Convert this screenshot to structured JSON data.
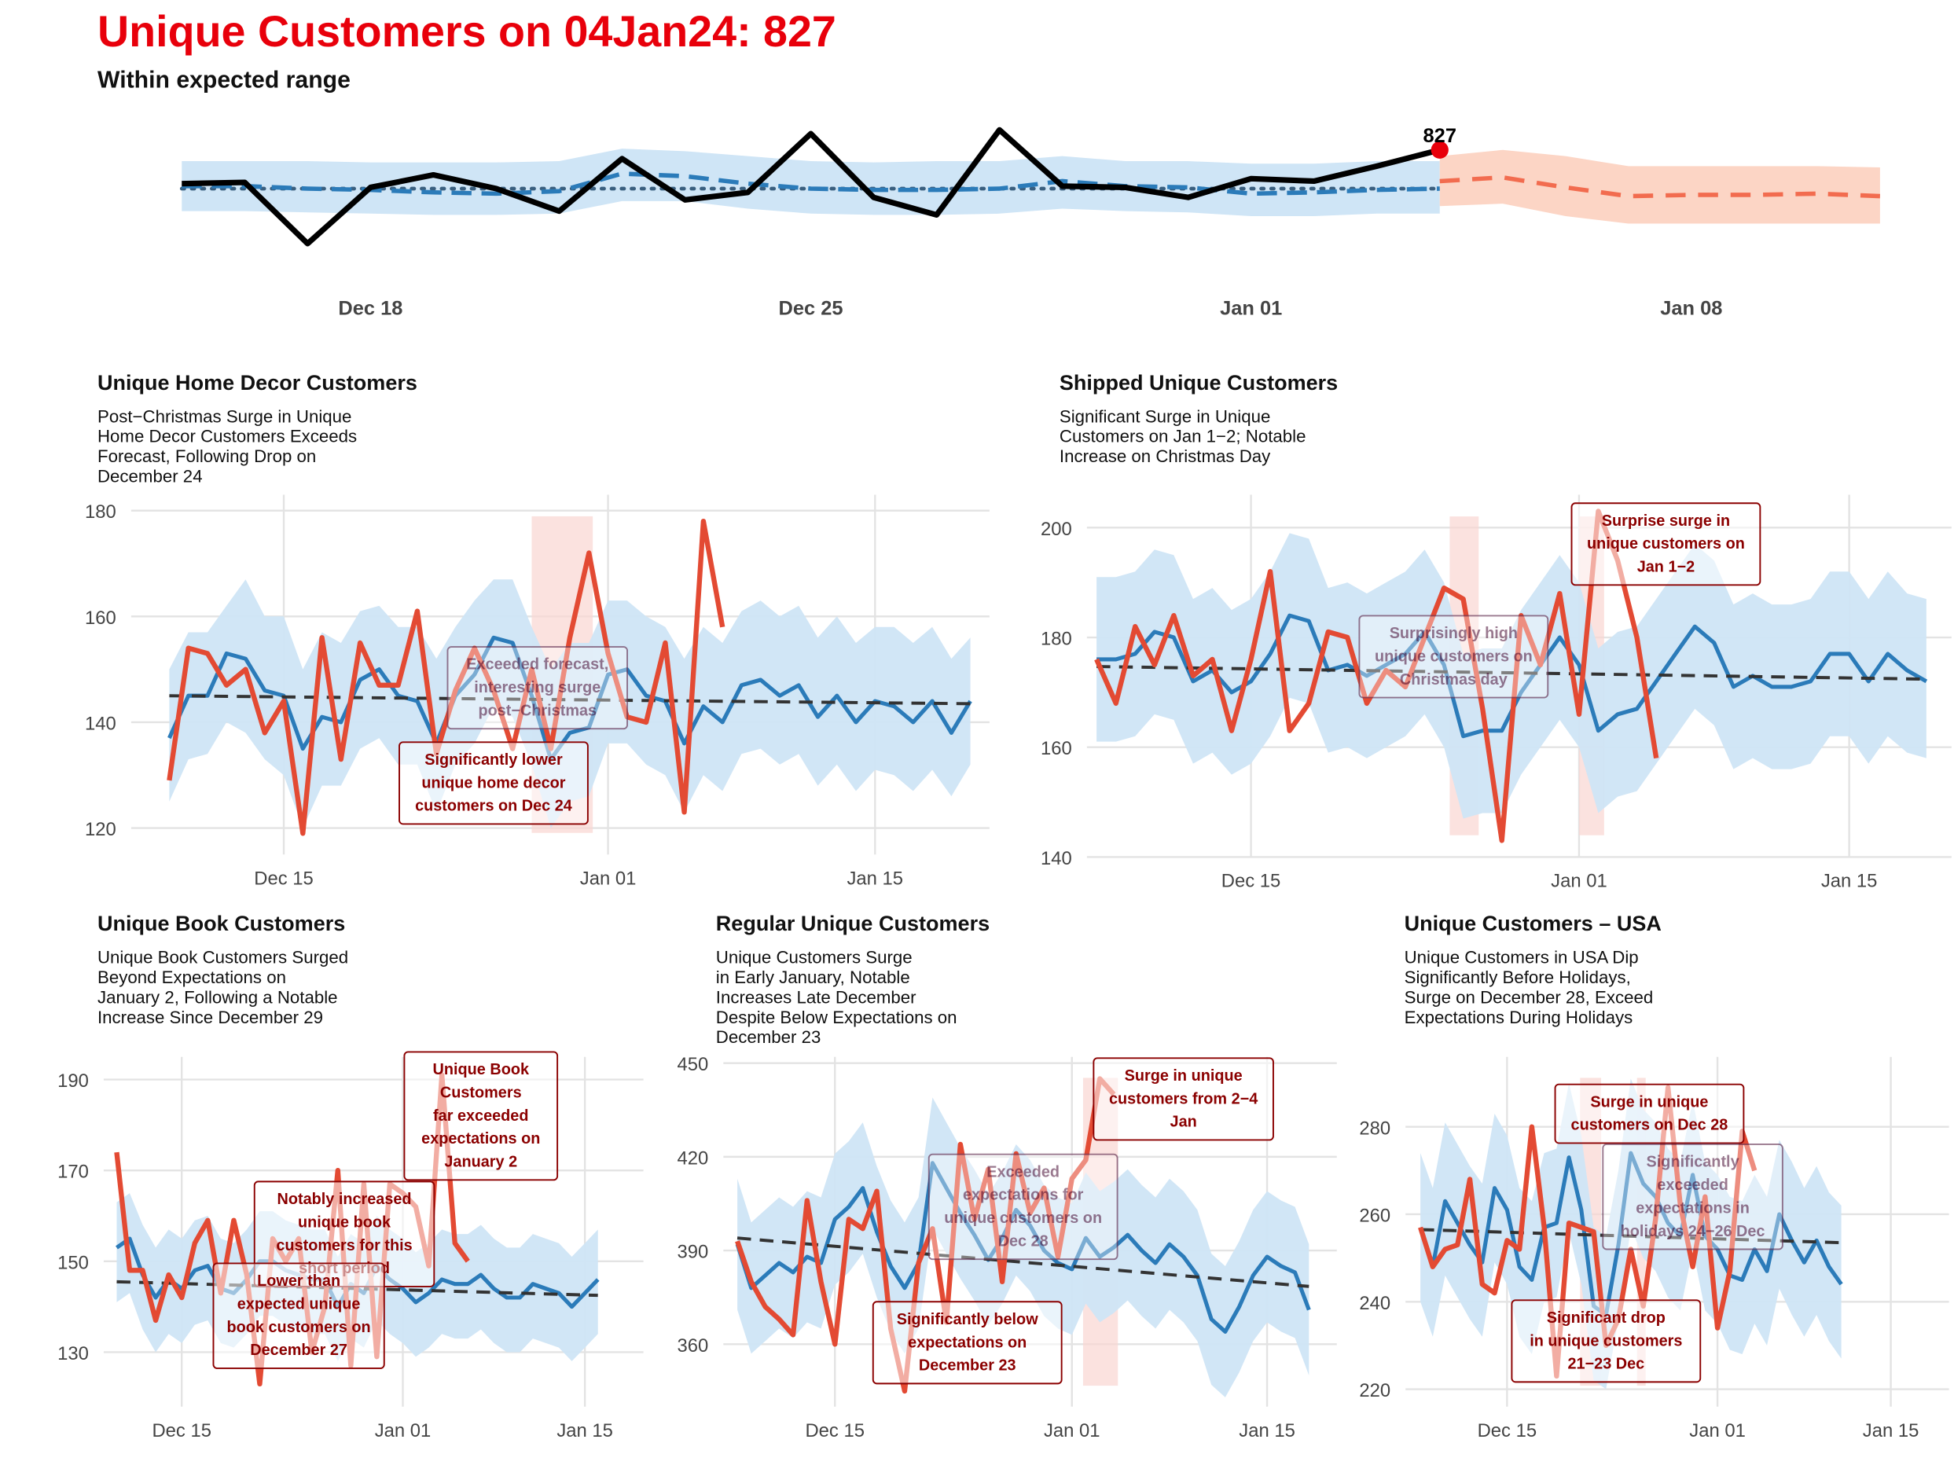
{
  "header": {
    "title": "Unique Customers on 04Jan24: 827",
    "subtitle": "Within expected range"
  },
  "colors": {
    "actual_top": "#000000",
    "actual": "#e34a33",
    "expected": "#2b7bb9",
    "band": "#cfe5f6",
    "forecast": "#f26c4f",
    "forecast_band": "#fcd5c5",
    "trend": "#333333",
    "highlight": "#e8000b",
    "annotation": "#8b0000"
  },
  "chart_data": [
    {
      "id": "overview",
      "type": "line",
      "title": "Unique Customers on 04Jan24: 827",
      "subtitle": "Within expected range",
      "x_ticks": [
        {
          "x": 3,
          "label": "Dec 18"
        },
        {
          "x": 10,
          "label": "Dec 25"
        },
        {
          "x": 17,
          "label": "Jan 01"
        },
        {
          "x": 24,
          "label": "Jan 08"
        }
      ],
      "xlim": [
        -1.5,
        27.5
      ],
      "ylim": [
        715,
        860
      ],
      "actual": [
        800,
        801,
        752,
        797,
        807,
        796,
        778,
        820,
        787,
        793,
        840,
        789,
        775,
        843,
        798,
        797,
        789,
        804,
        802,
        814,
        827
      ],
      "expected": [
        798,
        798,
        796,
        795,
        793,
        792,
        794,
        808,
        806,
        800,
        796,
        795,
        795,
        796,
        802,
        798,
        797,
        792,
        793,
        795,
        796
      ],
      "trend": [
        796,
        796,
        796,
        796,
        796,
        796,
        796,
        796,
        796,
        796,
        796,
        796,
        796,
        796,
        796,
        796,
        796,
        796,
        796,
        796,
        796
      ],
      "band_upper": [
        818,
        818,
        818,
        817,
        817,
        817,
        818,
        828,
        826,
        822,
        818,
        817,
        818,
        818,
        822,
        818,
        818,
        816,
        816,
        818,
        818
      ],
      "band_lower": [
        778,
        778,
        777,
        776,
        775,
        775,
        776,
        786,
        786,
        780,
        776,
        775,
        775,
        776,
        780,
        778,
        777,
        774,
        774,
        776,
        776
      ],
      "forecast_x": [
        20,
        21,
        22,
        23,
        24,
        25,
        26,
        27
      ],
      "forecast": [
        802,
        805,
        797,
        790,
        791,
        791,
        792,
        790
      ],
      "forecast_upper": [
        822,
        827,
        822,
        814,
        814,
        814,
        814,
        813
      ],
      "forecast_lower": [
        782,
        784,
        774,
        768,
        768,
        768,
        768,
        768
      ],
      "last_point": {
        "x": 20,
        "y": 827,
        "label": "827"
      }
    },
    {
      "id": "home-decor",
      "type": "line",
      "title": "Unique Home Decor Customers",
      "subtitle": "Post−Christmas Surge in Unique\nHome Decor Customers Exceeds\nForecast, Following Drop on\nDecember 24",
      "x_ticks": [
        {
          "x": 6,
          "label": "Dec 15"
        },
        {
          "x": 23,
          "label": "Jan 01"
        },
        {
          "x": 37,
          "label": "Jan 15"
        }
      ],
      "y_ticks": [
        120,
        140,
        160,
        180
      ],
      "xlim": [
        -2,
        43
      ],
      "ylim": [
        115,
        183
      ],
      "actual": [
        129,
        154,
        153,
        147,
        150,
        138,
        144,
        119,
        156,
        133,
        155,
        147,
        147,
        161,
        134,
        146,
        154,
        146,
        135,
        150,
        135,
        156,
        172,
        153,
        141,
        140,
        155,
        123,
        178,
        158
      ],
      "expected": [
        137,
        145,
        145,
        153,
        152,
        146,
        145,
        135,
        141,
        140,
        148,
        150,
        145,
        144,
        136,
        145,
        149,
        156,
        155,
        145,
        133,
        138,
        139,
        149,
        150,
        145,
        144,
        136,
        143,
        140,
        147,
        148,
        145,
        147,
        141,
        145,
        140,
        144,
        143,
        140,
        144,
        138,
        144
      ],
      "band_upper": [
        150,
        157,
        157,
        162,
        167,
        160,
        160,
        150,
        157,
        155,
        161,
        162,
        158,
        158,
        152,
        158,
        163,
        167,
        167,
        158,
        150,
        155,
        155,
        163,
        163,
        160,
        158,
        152,
        158,
        155,
        161,
        163,
        160,
        162,
        156,
        160,
        155,
        158,
        158,
        155,
        158,
        152,
        156
      ],
      "band_lower": [
        125,
        133,
        134,
        140,
        138,
        133,
        130,
        120,
        128,
        128,
        135,
        137,
        132,
        132,
        123,
        132,
        136,
        143,
        141,
        132,
        120,
        125,
        126,
        136,
        136,
        132,
        130,
        123,
        130,
        127,
        134,
        135,
        132,
        134,
        128,
        132,
        127,
        131,
        130,
        127,
        131,
        126,
        132
      ],
      "trend": [
        145,
        143.5
      ],
      "shade": {
        "x0": 19,
        "x1": 22.2
      },
      "annotations": [
        {
          "text": "Exceeded forecast,\ninteresting surge\npost−Christmas",
          "x": 19.3,
          "y": 146.5,
          "style": "faded"
        },
        {
          "text": "Significantly lower\nunique home decor\ncustomers on Dec 24",
          "x": 17,
          "y": 128.5,
          "style": "solid"
        }
      ]
    },
    {
      "id": "shipped",
      "type": "line",
      "title": "Shipped Unique Customers",
      "subtitle": "Significant Surge in Unique\nCustomers on Jan 1−2; Notable\nIncrease on Christmas Day",
      "x_ticks": [
        {
          "x": 8,
          "label": "Dec 15"
        },
        {
          "x": 25,
          "label": "Jan 01"
        },
        {
          "x": 39,
          "label": "Jan 15"
        }
      ],
      "y_ticks": [
        140,
        160,
        180,
        200
      ],
      "xlim": [
        -0.5,
        44.3
      ],
      "ylim": [
        140,
        206
      ],
      "actual": [
        176,
        168,
        182,
        175,
        184,
        173,
        176,
        163,
        176,
        192,
        163,
        168,
        181,
        180,
        168,
        174,
        171,
        180,
        189,
        187,
        167,
        143,
        184,
        175,
        188,
        166,
        203,
        194,
        180,
        158
      ],
      "expected": [
        176,
        176,
        177,
        181,
        180,
        172,
        174,
        170,
        172,
        177,
        184,
        183,
        174,
        175,
        173,
        175,
        177,
        181,
        175,
        162,
        163,
        163,
        170,
        175,
        180,
        175,
        163,
        166,
        167,
        172,
        177,
        182,
        179,
        171,
        173,
        171,
        171,
        172,
        177,
        177,
        172,
        177,
        174,
        172
      ],
      "band_upper": [
        191,
        191,
        192,
        196,
        195,
        187,
        189,
        185,
        187,
        192,
        199,
        198,
        189,
        190,
        188,
        190,
        192,
        196,
        190,
        177,
        178,
        178,
        185,
        190,
        195,
        190,
        178,
        181,
        182,
        187,
        192,
        197,
        194,
        186,
        188,
        186,
        186,
        187,
        192,
        192,
        187,
        192,
        188,
        187
      ],
      "band_lower": [
        161,
        161,
        162,
        166,
        165,
        157,
        159,
        155,
        157,
        162,
        169,
        168,
        159,
        160,
        158,
        160,
        162,
        166,
        160,
        147,
        148,
        148,
        155,
        160,
        165,
        160,
        148,
        151,
        152,
        157,
        162,
        167,
        164,
        156,
        158,
        156,
        156,
        157,
        162,
        162,
        157,
        162,
        159,
        158
      ],
      "trend": [
        174.7,
        172.4
      ],
      "shades": [
        {
          "x0": 18.3,
          "x1": 19.8
        },
        {
          "x0": 25,
          "x1": 26.3
        }
      ],
      "annotations": [
        {
          "text": "Surprisingly high\nunique customers on\nChristmas day",
          "x": 18.5,
          "y": 176.5,
          "style": "faded"
        },
        {
          "text": "Surprise surge in\nunique customers on\nJan 1−2",
          "x": 29.5,
          "y": 197,
          "style": "solid"
        }
      ]
    },
    {
      "id": "book",
      "type": "line",
      "title": "Unique Book Customers",
      "subtitle": "Unique Book Customers Surged\nBeyond Expectations on\nJanuary 2, Following a Notable\nIncrease Since December 29",
      "x_ticks": [
        {
          "x": 5,
          "label": "Dec 15"
        },
        {
          "x": 22,
          "label": "Jan 01"
        },
        {
          "x": 36,
          "label": "Jan 15"
        }
      ],
      "y_ticks": [
        130,
        150,
        170,
        190
      ],
      "xlim": [
        -1,
        40.5
      ],
      "ylim": [
        118,
        195
      ],
      "actual": [
        174,
        148,
        148,
        137,
        147,
        142,
        154,
        159,
        143,
        159,
        147,
        123,
        155,
        150,
        155,
        130,
        140,
        170,
        127,
        167,
        129,
        167,
        165,
        162,
        149,
        191,
        154,
        150
      ],
      "expected": [
        153,
        155,
        147,
        142,
        146,
        144,
        148,
        149,
        144,
        143,
        146,
        150,
        150,
        148,
        147,
        146,
        146,
        140,
        145,
        143,
        149,
        146,
        144,
        141,
        143,
        146,
        145,
        145,
        147,
        144,
        142,
        142,
        145,
        144,
        143,
        140,
        143,
        146
      ],
      "band_upper": [
        163,
        165,
        158,
        153,
        157,
        155,
        159,
        160,
        155,
        154,
        157,
        161,
        161,
        159,
        158,
        157,
        157,
        151,
        156,
        154,
        160,
        157,
        155,
        152,
        154,
        157,
        156,
        156,
        158,
        155,
        153,
        153,
        156,
        155,
        154,
        151,
        154,
        157
      ],
      "band_lower": [
        141,
        143,
        135,
        130,
        134,
        132,
        136,
        137,
        132,
        131,
        134,
        138,
        138,
        136,
        135,
        134,
        134,
        128,
        133,
        131,
        137,
        134,
        132,
        129,
        131,
        134,
        133,
        133,
        135,
        132,
        130,
        130,
        133,
        132,
        131,
        128,
        131,
        134
      ],
      "trend": [
        145.5,
        142.5
      ],
      "annotations": [
        {
          "text": "Unique Book\nCustomers\nfar exceeded\nexpectations on\nJanuary 2",
          "x": 28,
          "y": 182,
          "style": "solid",
          "clip": true
        },
        {
          "text": "Notably increased\nunique book\ncustomers for this\nshort period",
          "x": 17.5,
          "y": 156,
          "style": "solid"
        },
        {
          "text": "Lower than\nexpected unique\nbook customers on\nDecember 27",
          "x": 14,
          "y": 138,
          "style": "solid"
        }
      ]
    },
    {
      "id": "regular",
      "type": "line",
      "title": "Regular Unique Customers",
      "subtitle": "Unique Customers Surge\nin Early January, Notable\nIncreases Late December\nDespite Below Expectations on\nDecember 23",
      "x_ticks": [
        {
          "x": 7,
          "label": "Dec 15"
        },
        {
          "x": 24,
          "label": "Jan 01"
        },
        {
          "x": 38,
          "label": "Jan 15"
        }
      ],
      "y_ticks": [
        360,
        390,
        420,
        450
      ],
      "xlim": [
        -1,
        43
      ],
      "ylim": [
        340,
        452
      ],
      "actual": [
        393,
        380,
        372,
        368,
        363,
        406,
        380,
        360,
        400,
        397,
        409,
        365,
        345,
        386,
        397,
        367,
        424,
        400,
        416,
        380,
        421,
        402,
        410,
        388,
        413,
        419,
        445,
        440
      ],
      "expected": [
        392,
        378,
        382,
        386,
        383,
        388,
        386,
        400,
        404,
        410,
        396,
        385,
        378,
        386,
        418,
        410,
        402,
        395,
        387,
        394,
        403,
        398,
        390,
        386,
        384,
        394,
        388,
        391,
        395,
        390,
        386,
        392,
        388,
        382,
        368,
        364,
        372,
        382,
        388,
        385,
        383,
        371
      ],
      "band_upper": [
        413,
        399,
        403,
        407,
        404,
        409,
        407,
        421,
        425,
        431,
        417,
        406,
        399,
        407,
        439,
        431,
        423,
        416,
        408,
        415,
        424,
        419,
        411,
        407,
        405,
        415,
        409,
        412,
        416,
        411,
        407,
        413,
        409,
        403,
        389,
        385,
        393,
        403,
        409,
        406,
        404,
        392
      ],
      "band_lower": [
        371,
        357,
        361,
        365,
        362,
        367,
        365,
        379,
        383,
        389,
        375,
        364,
        357,
        365,
        397,
        389,
        381,
        374,
        366,
        373,
        382,
        377,
        369,
        365,
        363,
        373,
        367,
        370,
        374,
        369,
        365,
        371,
        367,
        361,
        347,
        343,
        351,
        361,
        367,
        364,
        362,
        350
      ],
      "trend": [
        394,
        378.5
      ],
      "shade": {
        "x0": 24.8,
        "x1": 27.3
      },
      "annotations": [
        {
          "text": "Surge in unique\ncustomers from 2−4\nJan",
          "x": 32,
          "y": 438.5,
          "style": "solid"
        },
        {
          "text": "Exceeded\nexpectations for\nunique customers on\nDec 28",
          "x": 20.5,
          "y": 404,
          "style": "faded"
        },
        {
          "text": "Significantly below\nexpectations on\nDecember 23",
          "x": 16.5,
          "y": 360.5,
          "style": "solid"
        }
      ]
    },
    {
      "id": "usa",
      "type": "line",
      "title": "Unique Customers – USA",
      "subtitle": "Unique Customers in USA Dip\nSignificantly Before Holidays,\nSurge on December 28, Exceed\nExpectations During Holidays",
      "x_ticks": [
        {
          "x": 7,
          "label": "Dec 15"
        },
        {
          "x": 24,
          "label": "Jan 01"
        },
        {
          "x": 38,
          "label": "Jan 15"
        }
      ],
      "y_ticks": [
        220,
        240,
        260,
        280
      ],
      "xlim": [
        -1.2,
        42.7
      ],
      "ylim": [
        216,
        296
      ],
      "actual": [
        257,
        248,
        252,
        253,
        268,
        244,
        242,
        254,
        252,
        280,
        257,
        223,
        258,
        257,
        256,
        230,
        236,
        252,
        239,
        259,
        289,
        262,
        248,
        264,
        234,
        247,
        279,
        270
      ],
      "expected": [
        257,
        248,
        263,
        258,
        253,
        249,
        266,
        261,
        248,
        245,
        257,
        258,
        273,
        261,
        239,
        237,
        253,
        274,
        267,
        264,
        258,
        255,
        269,
        255,
        252,
        246,
        245,
        252,
        247,
        260,
        254,
        249,
        254,
        248,
        244
      ],
      "band_upper": [
        274,
        266,
        281,
        276,
        271,
        267,
        283,
        278,
        266,
        263,
        274,
        275,
        290,
        278,
        257,
        255,
        270,
        291,
        284,
        281,
        275,
        272,
        286,
        272,
        269,
        264,
        263,
        269,
        264,
        277,
        272,
        266,
        271,
        265,
        262
      ],
      "band_lower": [
        240,
        232,
        246,
        241,
        236,
        232,
        249,
        244,
        232,
        228,
        240,
        241,
        256,
        244,
        222,
        220,
        236,
        257,
        250,
        247,
        241,
        238,
        252,
        238,
        235,
        229,
        228,
        235,
        230,
        243,
        237,
        232,
        237,
        231,
        227
      ],
      "trend": [
        256.5,
        253.5
      ],
      "shades": [
        {
          "x0": 12.9,
          "x1": 14.6
        },
        {
          "x0": 17.5,
          "x1": 18.2
        }
      ],
      "annotations": [
        {
          "text": "Surge in unique\ncustomers on Dec 28",
          "x": 18.5,
          "y": 283,
          "style": "solid"
        },
        {
          "text": "Significantly\nexceeded\nexpectations in\nholidays 24−26 Dec",
          "x": 22,
          "y": 264,
          "style": "faded"
        },
        {
          "text": "Significant drop\nin unique customers\n21−23 Dec",
          "x": 15,
          "y": 231,
          "style": "solid"
        }
      ]
    }
  ]
}
